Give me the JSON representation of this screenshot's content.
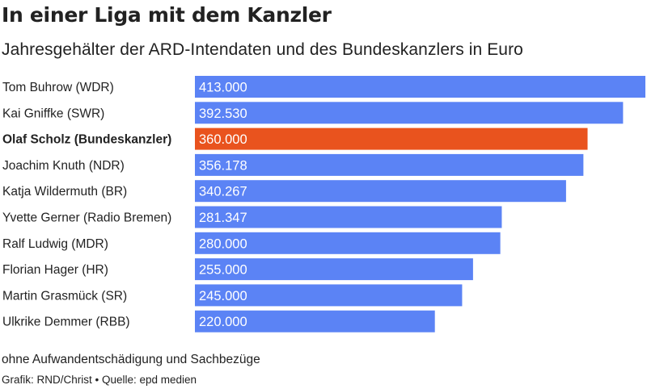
{
  "title": "In einer Liga mit dem Kanzler",
  "subtitle": "Jahresgehälter der ARD-Intendaten und des Bundeskanzlers in Euro",
  "note": "ohne Aufwandentschädigung und Sachbezüge",
  "source": "Grafik: RND/Christ • Quelle: epd medien",
  "colors": {
    "default_bar": "#5b83f5",
    "highlight_bar": "#e9531e",
    "value_text": "#ffffff"
  },
  "chart_data": {
    "type": "bar",
    "orientation": "horizontal",
    "title": "In einer Liga mit dem Kanzler",
    "subtitle": "Jahresgehälter der ARD-Intendaten und des Bundeskanzlers in Euro",
    "categories": [
      "Tom Buhrow (WDR)",
      "Kai Gniffke (SWR)",
      "Olaf Scholz (Bundeskanzler)",
      "Joachim Knuth (NDR)",
      "Katja Wildermuth (BR)",
      "Yvette Gerner (Radio Bremen)",
      "Ralf Ludwig (MDR)",
      "Florian Hager (HR)",
      "Martin Grasmück (SR)",
      "Ulkrike Demmer (RBB)"
    ],
    "values": [
      413000,
      392530,
      360000,
      356178,
      340267,
      281347,
      280000,
      255000,
      245000,
      220000
    ],
    "value_labels": [
      "413.000",
      "392.530",
      "360.000",
      "356.178",
      "340.267",
      "281.347",
      "280.000",
      "255.000",
      "245.000",
      "220.000"
    ],
    "highlight_index": 2,
    "xlim": [
      0,
      413000
    ],
    "grid": false,
    "legend": "none"
  }
}
